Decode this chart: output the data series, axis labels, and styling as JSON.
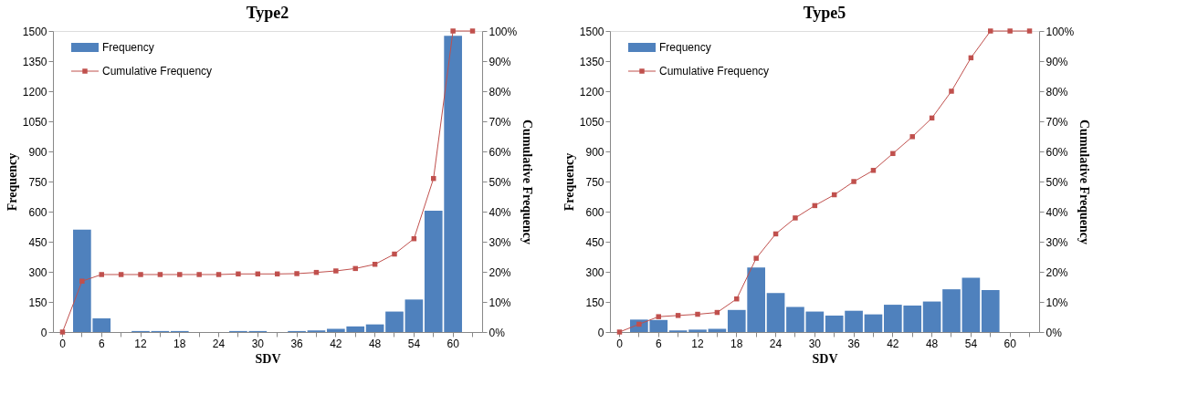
{
  "chart_data": [
    {
      "type": "bar",
      "title": "Type2",
      "xlabel": "SDV",
      "ylabel": "Frequency",
      "y2label": "Cumulative Frequency",
      "categories": [
        "0",
        null,
        "6",
        null,
        "12",
        null,
        "18",
        null,
        "24",
        null,
        "30",
        null,
        "36",
        null,
        "42",
        null,
        "48",
        null,
        "54",
        null,
        "60",
        null
      ],
      "series": [
        {
          "name": "Frequency",
          "color": "#4f81bd",
          "values": [
            0,
            510,
            68,
            0,
            5,
            5,
            5,
            0,
            0,
            5,
            5,
            0,
            5,
            8,
            16,
            28,
            38,
            102,
            162,
            604,
            1476,
            0
          ]
        },
        {
          "name": "Cumulative Frequency",
          "type": "line",
          "axis": "y2",
          "color": "#c0504d",
          "marker": "square",
          "values": [
            0,
            16.9,
            19.1,
            19.1,
            19.1,
            19.1,
            19.1,
            19.1,
            19.1,
            19.3,
            19.3,
            19.3,
            19.4,
            19.8,
            20.3,
            21.1,
            22.5,
            25.9,
            31,
            51,
            100,
            100
          ]
        }
      ],
      "ylim": [
        0,
        1500
      ],
      "yticks": [
        0,
        150,
        300,
        450,
        600,
        750,
        900,
        1050,
        1200,
        1350,
        1500
      ],
      "y2lim": [
        0,
        100
      ],
      "y2ticks": [
        {
          "value": 0,
          "label": "0%"
        },
        {
          "value": 10,
          "label": "10%"
        },
        {
          "value": 20,
          "label": "20%"
        },
        {
          "value": 30,
          "label": "30%"
        },
        {
          "value": 40,
          "label": "40%"
        },
        {
          "value": 50,
          "label": "50%"
        },
        {
          "value": 60,
          "label": "60%"
        },
        {
          "value": 70,
          "label": "70%"
        },
        {
          "value": 80,
          "label": "80%"
        },
        {
          "value": 90,
          "label": "90%"
        },
        {
          "value": 100,
          "label": "100%"
        }
      ],
      "legend": "top left",
      "grid": false
    },
    {
      "type": "bar",
      "title": "Type5",
      "xlabel": "SDV",
      "ylabel": "Frequency",
      "y2label": "Cumulative Frequency",
      "categories": [
        "0",
        null,
        "6",
        null,
        "12",
        null,
        "18",
        null,
        "24",
        null,
        "30",
        null,
        "36",
        null,
        "42",
        null,
        "48",
        null,
        "54",
        null,
        "60",
        null
      ],
      "series": [
        {
          "name": "Frequency",
          "color": "#4f81bd",
          "values": [
            0,
            62,
            60,
            8,
            12,
            16,
            110,
            322,
            194,
            125,
            102,
            82,
            106,
            88,
            136,
            132,
            152,
            213,
            271,
            209,
            0,
            0
          ]
        },
        {
          "name": "Cumulative Frequency",
          "type": "line",
          "axis": "y2",
          "color": "#c0504d",
          "marker": "square",
          "values": [
            0,
            2.6,
            5.1,
            5.5,
            5.9,
            6.5,
            11,
            24.5,
            32.6,
            37.9,
            42,
            45.6,
            50,
            53.7,
            59.3,
            64.9,
            71.1,
            80,
            91.1,
            100,
            100,
            100
          ]
        }
      ],
      "ylim": [
        0,
        1500
      ],
      "yticks": [
        0,
        150,
        300,
        450,
        600,
        750,
        900,
        1050,
        1200,
        1350,
        1500
      ],
      "y2lim": [
        0,
        100
      ],
      "y2ticks": [
        {
          "value": 0,
          "label": "0%"
        },
        {
          "value": 10,
          "label": "10%"
        },
        {
          "value": 20,
          "label": "20%"
        },
        {
          "value": 30,
          "label": "30%"
        },
        {
          "value": 40,
          "label": "40%"
        },
        {
          "value": 50,
          "label": "50%"
        },
        {
          "value": 60,
          "label": "60%"
        },
        {
          "value": 70,
          "label": "70%"
        },
        {
          "value": 80,
          "label": "80%"
        },
        {
          "value": 90,
          "label": "90%"
        },
        {
          "value": 100,
          "label": "100%"
        }
      ],
      "legend": "top left",
      "grid": false
    }
  ]
}
